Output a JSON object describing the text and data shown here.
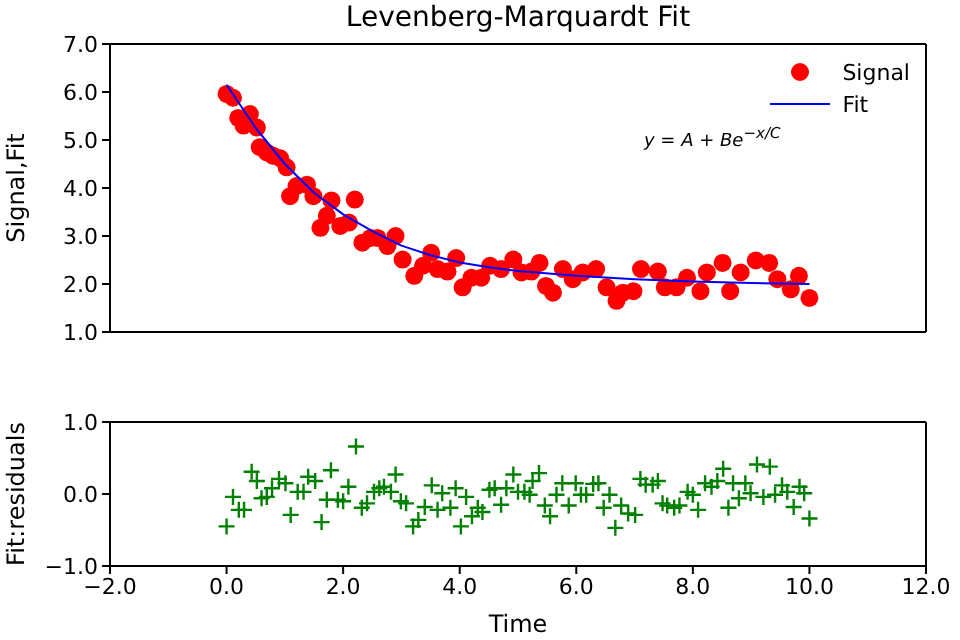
{
  "chart_data": [
    {
      "type": "scatter",
      "title": "Levenberg-Marquardt Fit",
      "ylabel": "Signal,Fit",
      "annotations": [
        "y = A + Be$^{−x/C}$"
      ],
      "legend": "top right",
      "tick_labels": "y",
      "xlim": [
        -2,
        12
      ],
      "xticks": [
        {
          "value": 0,
          "label": null
        },
        {
          "value": 2,
          "label": null
        },
        {
          "value": 4,
          "label": null
        },
        {
          "value": 6,
          "label": null
        },
        {
          "value": 8,
          "label": null
        },
        {
          "value": 10,
          "label": null
        }
      ],
      "ylim": [
        1,
        7
      ],
      "yticks": [
        {
          "value": 1,
          "label": "1.0"
        },
        {
          "value": 2,
          "label": "2.0"
        },
        {
          "value": 3,
          "label": "3.0"
        },
        {
          "value": 4,
          "label": "4.0"
        },
        {
          "value": 5,
          "label": "5.0"
        },
        {
          "value": 6,
          "label": "6.0"
        },
        {
          "value": 7,
          "label": "7.0"
        }
      ],
      "series": [
        {
          "name": "Signal",
          "marker": "circle",
          "color": "#ff0000",
          "x": [
            0,
            0.11,
            0.2,
            0.29,
            0.4,
            0.52,
            0.57,
            0.69,
            0.8,
            0.92,
            1.03,
            1.09,
            1.2,
            1.38,
            1.49,
            1.61,
            1.72,
            1.8,
            1.95,
            2.1,
            2.2,
            2.33,
            2.47,
            2.59,
            2.76,
            2.9,
            3.02,
            3.22,
            3.37,
            3.51,
            3.62,
            3.79,
            3.94,
            4.05,
            4.2,
            4.37,
            4.52,
            4.71,
            4.92,
            5.06,
            5.23,
            5.37,
            5.48,
            5.6,
            5.77,
            5.94,
            6.11,
            6.34,
            6.52,
            6.69,
            6.8,
            6.98,
            7.11,
            7.4,
            7.52,
            7.72,
            7.9,
            8.13,
            8.24,
            8.51,
            8.64,
            8.82,
            9.08,
            9.31,
            9.45,
            9.68,
            9.82,
            10
          ],
          "values": [
            5.96,
            5.88,
            5.46,
            5.3,
            5.54,
            5.26,
            4.85,
            4.74,
            4.67,
            4.62,
            4.43,
            3.83,
            4.04,
            4.07,
            3.83,
            3.17,
            3.42,
            3.74,
            3.21,
            3.28,
            3.76,
            2.86,
            2.96,
            2.96,
            2.79,
            3.0,
            2.51,
            2.17,
            2.38,
            2.65,
            2.31,
            2.26,
            2.54,
            1.93,
            2.13,
            2.13,
            2.38,
            2.31,
            2.51,
            2.24,
            2.26,
            2.44,
            1.96,
            1.82,
            2.31,
            2.1,
            2.24,
            2.31,
            1.93,
            1.65,
            1.82,
            1.85,
            2.31,
            2.26,
            1.93,
            1.93,
            2.13,
            1.85,
            2.24,
            2.44,
            1.85,
            2.24,
            2.49,
            2.44,
            2.1,
            1.89,
            2.17,
            1.71
          ]
        },
        {
          "name": "Fit",
          "type": "line",
          "marker": "none",
          "line_style": "solid",
          "color": "#0000ff",
          "x": [
            0,
            0.5,
            1,
            1.5,
            2,
            2.5,
            3,
            3.5,
            4,
            4.5,
            5,
            6,
            7,
            8,
            9,
            10
          ],
          "values": [
            6.15,
            5.25,
            4.5,
            3.9,
            3.45,
            3.1,
            2.8,
            2.6,
            2.45,
            2.35,
            2.27,
            2.17,
            2.1,
            2.05,
            2.02,
            2.0
          ]
        }
      ]
    },
    {
      "type": "scatter",
      "ylabel": "Fit:residuals",
      "xlabel": "Time",
      "xlim": [
        -2,
        12
      ],
      "xticks": [
        {
          "value": -2,
          "label": "−2.0"
        },
        {
          "value": 0,
          "label": "0.0"
        },
        {
          "value": 2,
          "label": "2.0"
        },
        {
          "value": 4,
          "label": "4.0"
        },
        {
          "value": 6,
          "label": "6.0"
        },
        {
          "value": 8,
          "label": "8.0"
        },
        {
          "value": 10,
          "label": "10.0"
        },
        {
          "value": 12,
          "label": "12.0"
        }
      ],
      "ylim": [
        -1,
        1
      ],
      "yticks": [
        {
          "value": -1,
          "label": "−1.0"
        },
        {
          "value": 0,
          "label": "0.0"
        },
        {
          "value": 1,
          "label": "1.0"
        }
      ],
      "series": [
        {
          "marker": "cross",
          "color": "#008000",
          "x": [
            0,
            0.11,
            0.21,
            0.3,
            0.43,
            0.52,
            0.6,
            0.69,
            0.78,
            0.9,
            1.01,
            1.1,
            1.22,
            1.32,
            1.4,
            1.52,
            1.63,
            1.72,
            1.79,
            1.91,
            2.0,
            2.09,
            2.22,
            2.32,
            2.41,
            2.53,
            2.62,
            2.7,
            2.82,
            2.9,
            2.99,
            3.08,
            3.2,
            3.29,
            3.4,
            3.52,
            3.62,
            3.7,
            3.84,
            3.93,
            4.02,
            4.11,
            4.21,
            4.31,
            4.39,
            4.51,
            4.6,
            4.71,
            4.8,
            4.92,
            5.0,
            5.11,
            5.2,
            5.25,
            5.36,
            5.46,
            5.55,
            5.66,
            5.76,
            5.87,
            5.99,
            6.08,
            6.17,
            6.29,
            6.38,
            6.47,
            6.57,
            6.67,
            6.77,
            6.89,
            7.01,
            7.1,
            7.19,
            7.31,
            7.4,
            7.48,
            7.56,
            7.68,
            7.77,
            7.91,
            8.0,
            8.09,
            8.21,
            8.32,
            8.42,
            8.52,
            8.61,
            8.69,
            8.79,
            8.9,
            8.99,
            9.1,
            9.21,
            9.32,
            9.41,
            9.53,
            9.62,
            9.73,
            9.83,
            9.91,
            10.0
          ],
          "values": [
            -0.45,
            -0.04,
            -0.22,
            -0.22,
            0.31,
            0.18,
            -0.06,
            -0.04,
            0.08,
            0.21,
            0.15,
            -0.29,
            0.03,
            0.03,
            0.24,
            0.18,
            -0.39,
            -0.08,
            0.33,
            -0.08,
            -0.1,
            0.1,
            0.66,
            -0.19,
            -0.13,
            0.03,
            0.08,
            0.1,
            0.03,
            0.27,
            -0.1,
            -0.13,
            -0.45,
            -0.36,
            -0.18,
            0.12,
            -0.22,
            0.01,
            -0.19,
            0.08,
            -0.45,
            -0.04,
            -0.31,
            -0.19,
            -0.25,
            0.06,
            0.08,
            -0.15,
            0.08,
            0.27,
            0.03,
            0.03,
            -0.01,
            0.18,
            0.29,
            -0.16,
            -0.31,
            -0.01,
            0.15,
            -0.16,
            0.15,
            -0.01,
            -0.01,
            0.14,
            0.15,
            -0.19,
            -0.01,
            -0.47,
            -0.16,
            -0.27,
            -0.29,
            0.21,
            0.13,
            0.13,
            0.18,
            -0.13,
            -0.16,
            -0.19,
            -0.16,
            0.03,
            -0.01,
            -0.22,
            0.15,
            0.1,
            0.18,
            0.35,
            -0.19,
            0.15,
            -0.06,
            0.15,
            0.01,
            0.41,
            -0.04,
            0.38,
            -0.01,
            0.12,
            0.03,
            -0.18,
            0.1,
            0.01,
            -0.34
          ]
        }
      ]
    }
  ]
}
